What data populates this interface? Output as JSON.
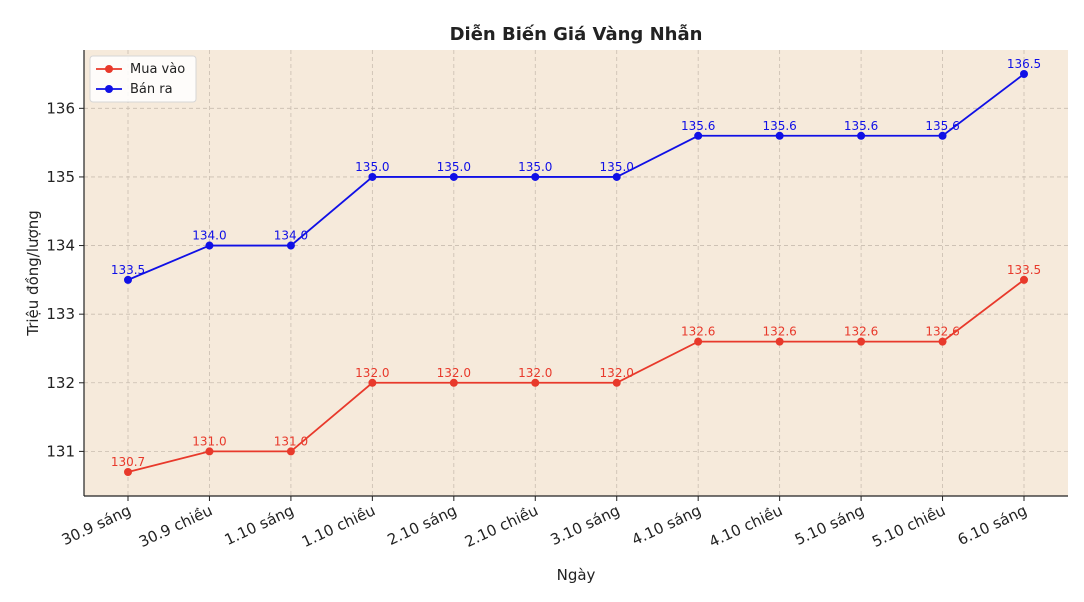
{
  "chart_data": {
    "type": "line",
    "title": "Diễn Biến Giá Vàng Nhẫn",
    "xlabel": "Ngày",
    "ylabel": "Triệu đồng/lượng",
    "categories": [
      "30.9 sáng",
      "30.9 chiều",
      "1.10 sáng",
      "1.10 chiều",
      "2.10 sáng",
      "2.10 chiều",
      "3.10 sáng",
      "4.10 sáng",
      "4.10 chiều",
      "5.10 sáng",
      "5.10 chiều",
      "6.10 sáng"
    ],
    "series": [
      {
        "name": "Mua vào",
        "color": "#e8392b",
        "values": [
          130.7,
          131.0,
          131.0,
          132.0,
          132.0,
          132.0,
          132.0,
          132.6,
          132.6,
          132.6,
          132.6,
          133.5
        ],
        "labels": [
          "130.7",
          "131.0",
          "131.0",
          "132.0",
          "132.0",
          "132.0",
          "132.0",
          "132.6",
          "132.6",
          "132.6",
          "132.6",
          "133.5"
        ]
      },
      {
        "name": "Bán ra",
        "color": "#1010e6",
        "values": [
          133.5,
          134.0,
          134.0,
          135.0,
          135.0,
          135.0,
          135.0,
          135.6,
          135.6,
          135.6,
          135.6,
          136.5
        ],
        "labels": [
          "133.5",
          "134.0",
          "134.0",
          "135.0",
          "135.0",
          "135.0",
          "135.0",
          "135.6",
          "135.6",
          "135.6",
          "135.6",
          "136.5"
        ]
      }
    ],
    "yticks": [
      "131",
      "132",
      "133",
      "134",
      "135",
      "136"
    ],
    "ylim": [
      130.35,
      136.85
    ],
    "grid": true,
    "legend": "top-left",
    "background": "#f6eadb"
  }
}
